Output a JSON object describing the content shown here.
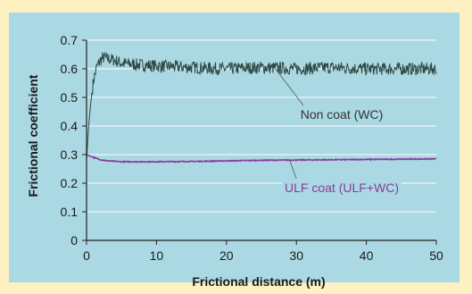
{
  "colors": {
    "frame_bg": "#fdf1c2",
    "plot_bg": "#aad8e3",
    "grid": "#ffffff",
    "axis": "#222222",
    "non_coat": "#2f4a44",
    "ulf_coat": "#8a3d9a"
  },
  "chart_data": {
    "type": "line",
    "title": "",
    "xlabel": "Frictional distance (m)",
    "ylabel": "Frictional coefficient",
    "xlim": [
      0,
      50
    ],
    "ylim": [
      0,
      0.7
    ],
    "xticks": [
      "0",
      "10",
      "20",
      "30",
      "40",
      "50"
    ],
    "yticks": [
      "0",
      "0.1",
      "0.2",
      "0.3",
      "0.4",
      "0.5",
      "0.6",
      "0.7"
    ],
    "grid": "horizontal",
    "legend": "none",
    "annotations": [
      {
        "text": "Non coat (WC)",
        "series": "Non coat (WC)"
      },
      {
        "text": "ULF coat (ULF+WC)",
        "series": "ULF coat (ULF+WC)"
      }
    ],
    "series": [
      {
        "name": "Non coat (WC)",
        "color": "#2f4a44",
        "x": [
          0,
          0.3,
          0.6,
          1,
          1.5,
          2,
          2.5,
          3,
          4,
          5,
          7,
          10,
          15,
          20,
          25,
          30,
          35,
          40,
          45,
          50
        ],
        "y": [
          0.28,
          0.4,
          0.48,
          0.56,
          0.61,
          0.63,
          0.64,
          0.635,
          0.63,
          0.62,
          0.615,
          0.61,
          0.605,
          0.6,
          0.605,
          0.6,
          0.605,
          0.6,
          0.6,
          0.6
        ]
      },
      {
        "name": "ULF coat (ULF+WC)",
        "color": "#8a3d9a",
        "x": [
          0,
          0.5,
          1,
          2,
          3,
          5,
          10,
          15,
          20,
          25,
          30,
          35,
          40,
          45,
          50
        ],
        "y": [
          0.3,
          0.295,
          0.29,
          0.282,
          0.278,
          0.275,
          0.275,
          0.276,
          0.278,
          0.28,
          0.281,
          0.282,
          0.283,
          0.284,
          0.285
        ]
      }
    ]
  }
}
